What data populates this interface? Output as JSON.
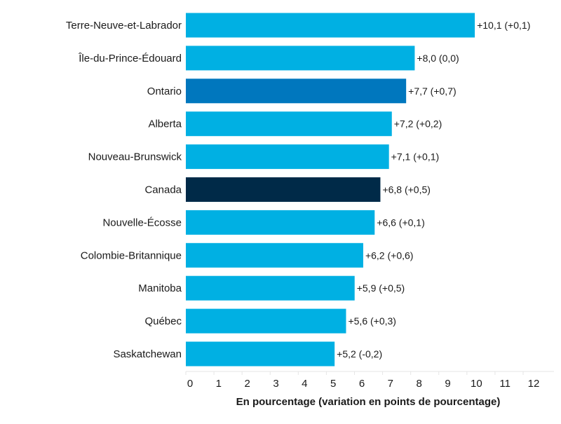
{
  "chart_data": {
    "type": "bar",
    "orientation": "horizontal",
    "categories": [
      "Terre-Neuve-et-Labrador",
      "Île-du-Prince-Édouard",
      "Ontario",
      "Alberta",
      "Nouveau-Brunswick",
      "Canada",
      "Nouvelle-Écosse",
      "Colombie-Britannique",
      "Manitoba",
      "Québec",
      "Saskatchewan"
    ],
    "values": [
      10.1,
      8.0,
      7.7,
      7.2,
      7.1,
      6.8,
      6.6,
      6.2,
      5.9,
      5.6,
      5.2
    ],
    "changes": [
      0.1,
      0.0,
      0.7,
      0.2,
      0.1,
      0.5,
      0.1,
      0.6,
      0.5,
      0.3,
      -0.2
    ],
    "data_labels": [
      "+10,1 (+0,1)",
      "+8,0 (0,0)",
      "+7,7 (+0,7)",
      "+7,2 (+0,2)",
      "+7,1 (+0,1)",
      "+6,8 (+0,5)",
      "+6,6 (+0,1)",
      "+6,2 (+0,6)",
      "+5,9 (+0,5)",
      "+5,6 (+0,3)",
      "+5,2 (-0,2)"
    ],
    "bar_colors": [
      "#00B0E3",
      "#00B0E3",
      "#0077BE",
      "#00B0E3",
      "#00B0E3",
      "#002A48",
      "#00B0E3",
      "#00B0E3",
      "#00B0E3",
      "#00B0E3",
      "#00B0E3"
    ],
    "xlabel": "En pourcentage (variation en points de pourcentage)",
    "ylabel": "",
    "xlim": [
      0,
      12
    ],
    "xticks": [
      "0",
      "1",
      "2",
      "3",
      "4",
      "5",
      "6",
      "7",
      "8",
      "9",
      "10",
      "11",
      "12"
    ],
    "grid": false
  }
}
